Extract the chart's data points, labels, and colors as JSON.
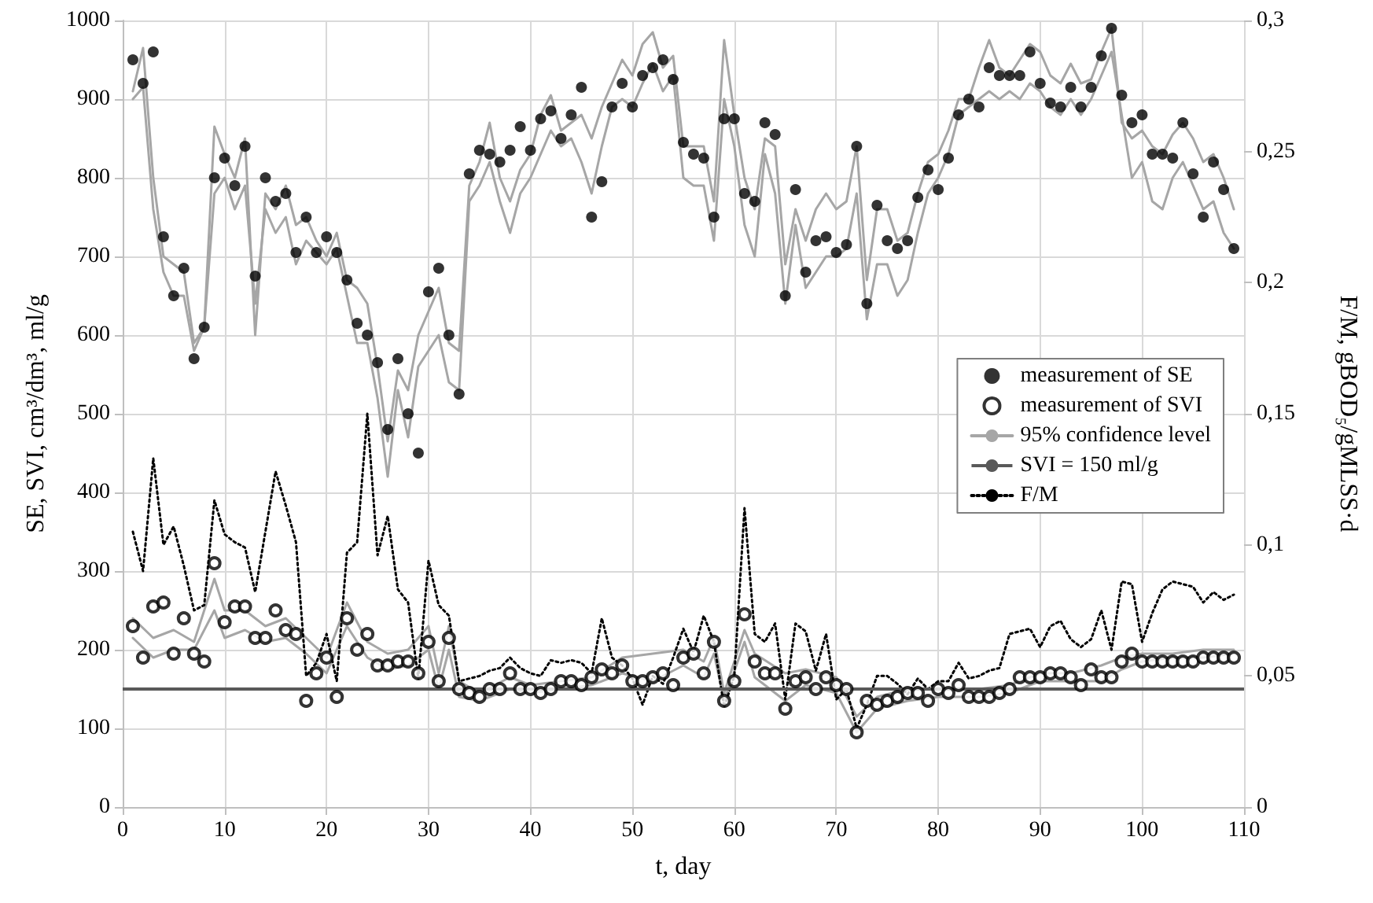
{
  "chart_data": {
    "type": "scatter",
    "xlabel": "t, day",
    "ylabel": "SE, SVI, cm³/dm³, ml/g",
    "y2label": "F/M, gBOD₅/gMLSS·d",
    "x": [
      1,
      2,
      3,
      4,
      5,
      6,
      7,
      8,
      9,
      10,
      11,
      12,
      13,
      14,
      15,
      16,
      17,
      18,
      19,
      20,
      21,
      22,
      23,
      24,
      25,
      26,
      27,
      28,
      29,
      30,
      31,
      32,
      33,
      34,
      35,
      36,
      37,
      38,
      39,
      40,
      41,
      42,
      43,
      44,
      45,
      46,
      47,
      48,
      49,
      50,
      51,
      52,
      53,
      54,
      55,
      56,
      57,
      58,
      59,
      60,
      61,
      62,
      63,
      64,
      65,
      66,
      67,
      68,
      69,
      70,
      71,
      72,
      73,
      74,
      75,
      76,
      77,
      78,
      79,
      80,
      81,
      82,
      83,
      84,
      85,
      86,
      87,
      88,
      89,
      90,
      91,
      92,
      93,
      94,
      95,
      96,
      97,
      98,
      99,
      100,
      101,
      102,
      103,
      104,
      105,
      106,
      107,
      108,
      109
    ],
    "xlim": [
      0,
      110
    ],
    "xticks": [
      0,
      10,
      20,
      30,
      40,
      50,
      60,
      70,
      80,
      90,
      100,
      110
    ],
    "ylim": [
      0,
      1000
    ],
    "yticks": [
      0,
      100,
      200,
      300,
      400,
      500,
      600,
      700,
      800,
      900,
      1000
    ],
    "y2lim": [
      0,
      0.3
    ],
    "y2ticks": [
      0,
      {
        "value": 0.05,
        "label": "0,05"
      },
      {
        "value": 0.1,
        "label": "0,1"
      },
      {
        "value": 0.15,
        "label": "0,15"
      },
      {
        "value": 0.2,
        "label": "0,2"
      },
      {
        "value": 0.25,
        "label": "0,25"
      },
      {
        "value": 0.3,
        "label": "0,3"
      }
    ],
    "grid": true,
    "legend": "right",
    "series": [
      {
        "name": "measurement of SE",
        "marker": "circle",
        "color": "#000000",
        "values": [
          950,
          920,
          960,
          725,
          650,
          685,
          570,
          610,
          800,
          825,
          790,
          840,
          675,
          800,
          770,
          780,
          705,
          750,
          705,
          725,
          705,
          670,
          615,
          600,
          565,
          480,
          570,
          500,
          450,
          655,
          685,
          600,
          525,
          805,
          835,
          830,
          820,
          835,
          865,
          835,
          875,
          885,
          850,
          880,
          915,
          750,
          795,
          890,
          920,
          890,
          930,
          940,
          950,
          925,
          845,
          830,
          825,
          750,
          875,
          875,
          780,
          770,
          870,
          855,
          650,
          785,
          680,
          720,
          725,
          705,
          715,
          840,
          640,
          765,
          720,
          710,
          720,
          775,
          810,
          785,
          825,
          880,
          900,
          890,
          940,
          930,
          930,
          930,
          960,
          920,
          895,
          890,
          915,
          890,
          915,
          955,
          990,
          905,
          870,
          880,
          830,
          830,
          825,
          870,
          805,
          750,
          820,
          785,
          710
        ]
      },
      {
        "name": "measurement of SVI",
        "marker": "open circle",
        "color": "#000000",
        "values": [
          230,
          190,
          255,
          260,
          195,
          240,
          195,
          185,
          310,
          235,
          255,
          255,
          215,
          215,
          250,
          225,
          220,
          135,
          170,
          190,
          140,
          240,
          200,
          220,
          180,
          180,
          185,
          185,
          170,
          210,
          160,
          215,
          150,
          145,
          140,
          150,
          150,
          170,
          150,
          150,
          145,
          150,
          160,
          160,
          155,
          165,
          175,
          170,
          180,
          160,
          160,
          165,
          170,
          155,
          190,
          195,
          170,
          210,
          135,
          160,
          245,
          185,
          170,
          170,
          125,
          160,
          165,
          150,
          165,
          155,
          150,
          95,
          135,
          130,
          135,
          140,
          145,
          145,
          135,
          150,
          145,
          155,
          140,
          140,
          140,
          145,
          150,
          165,
          165,
          165,
          170,
          170,
          165,
          155,
          175,
          165,
          165,
          185,
          195,
          185,
          185,
          185,
          185,
          185,
          185,
          190,
          190,
          190,
          190
        ]
      },
      {
        "name": "95% confidence level",
        "type": "line",
        "marker": "none",
        "line_style": "solid",
        "color": "#a6a6a6",
        "x": [
          1,
          2,
          3,
          4,
          5,
          6,
          7,
          8,
          9,
          10,
          11,
          12,
          13,
          14,
          15,
          16,
          17,
          18,
          19,
          20,
          21,
          22,
          23,
          24,
          25,
          26,
          27,
          28,
          29,
          30,
          31,
          32,
          33,
          34,
          35,
          36,
          37,
          38,
          39,
          40,
          41,
          42,
          43,
          44,
          45,
          46,
          47,
          48,
          49,
          50,
          51,
          52,
          53,
          54,
          55,
          56,
          57,
          58,
          59,
          60,
          61,
          62,
          63,
          64,
          65,
          66,
          67,
          68,
          69,
          70,
          71,
          72,
          73,
          74,
          75,
          76,
          77,
          78,
          79,
          80,
          81,
          82,
          83,
          84,
          85,
          86,
          87,
          88,
          89,
          90,
          91,
          92,
          93,
          94,
          95,
          96,
          97,
          98,
          99,
          100,
          101,
          102,
          103,
          104,
          105,
          106,
          107,
          108,
          109
        ],
        "values": [
          910,
          965,
          800,
          700,
          690,
          680,
          590,
          610,
          865,
          830,
          800,
          850,
          600,
          780,
          760,
          790,
          740,
          750,
          720,
          700,
          730,
          670,
          660,
          640,
          560,
          465,
          555,
          530,
          600,
          630,
          660,
          590,
          580,
          790,
          820,
          870,
          800,
          770,
          810,
          830,
          880,
          905,
          860,
          870,
          880,
          850,
          890,
          920,
          950,
          930,
          970,
          985,
          940,
          955,
          840,
          840,
          840,
          770,
          975,
          880,
          800,
          760,
          850,
          840,
          690,
          760,
          720,
          760,
          780,
          760,
          770,
          840,
          670,
          760,
          760,
          720,
          730,
          780,
          820,
          830,
          860,
          900,
          900,
          940,
          975,
          940,
          930,
          950,
          970,
          960,
          930,
          920,
          945,
          920,
          925,
          960,
          990,
          870,
          850,
          860,
          840,
          830,
          855,
          870,
          850,
          820,
          830,
          800,
          760
        ]
      },
      {
        "type": "line",
        "marker": "none",
        "line_style": "solid",
        "color": "#a6a6a6",
        "x": [
          1,
          2,
          3,
          4,
          5,
          6,
          7,
          8,
          9,
          10,
          11,
          12,
          13,
          14,
          15,
          16,
          17,
          18,
          19,
          20,
          21,
          22,
          23,
          24,
          25,
          26,
          27,
          28,
          29,
          30,
          31,
          32,
          33,
          34,
          35,
          36,
          37,
          38,
          39,
          40,
          41,
          42,
          43,
          44,
          45,
          46,
          47,
          48,
          49,
          50,
          51,
          52,
          53,
          54,
          55,
          56,
          57,
          58,
          59,
          60,
          61,
          62,
          63,
          64,
          65,
          66,
          67,
          68,
          69,
          70,
          71,
          72,
          73,
          74,
          75,
          76,
          77,
          78,
          79,
          80,
          81,
          82,
          83,
          84,
          85,
          86,
          87,
          88,
          89,
          90,
          91,
          92,
          93,
          94,
          95,
          96,
          97,
          98,
          99,
          100,
          101,
          102,
          103,
          104,
          105,
          106,
          107,
          108,
          109
        ],
        "values": [
          900,
          915,
          760,
          680,
          650,
          650,
          580,
          610,
          780,
          800,
          760,
          790,
          640,
          760,
          730,
          750,
          690,
          720,
          705,
          690,
          710,
          650,
          590,
          590,
          520,
          420,
          530,
          470,
          560,
          580,
          600,
          540,
          530,
          770,
          790,
          820,
          770,
          730,
          780,
          800,
          830,
          860,
          840,
          850,
          820,
          780,
          840,
          890,
          900,
          890,
          920,
          945,
          910,
          930,
          800,
          790,
          790,
          720,
          900,
          840,
          740,
          700,
          830,
          780,
          640,
          740,
          660,
          680,
          700,
          700,
          710,
          780,
          620,
          690,
          690,
          650,
          670,
          730,
          780,
          800,
          830,
          880,
          890,
          900,
          910,
          900,
          910,
          900,
          920,
          910,
          890,
          880,
          900,
          880,
          900,
          930,
          960,
          880,
          800,
          820,
          770,
          760,
          800,
          820,
          790,
          760,
          770,
          730,
          710
        ]
      },
      {
        "type": "line",
        "marker": "none",
        "line_style": "solid",
        "color": "#a6a6a6",
        "x": [
          1,
          3,
          5,
          7,
          9,
          10,
          12,
          14,
          16,
          18,
          20,
          22,
          24,
          26,
          28,
          30,
          31,
          32,
          33,
          35,
          38,
          40,
          43,
          46,
          49,
          52,
          55,
          57,
          58,
          59,
          61,
          62,
          65,
          67,
          70,
          72,
          74,
          77,
          80,
          84,
          87,
          90,
          93,
          96,
          98,
          100,
          103,
          106,
          109
        ],
        "values": [
          240,
          215,
          225,
          210,
          290,
          250,
          250,
          230,
          240,
          215,
          190,
          260,
          210,
          195,
          200,
          230,
          170,
          230,
          160,
          145,
          165,
          155,
          160,
          165,
          190,
          195,
          200,
          185,
          215,
          145,
          225,
          195,
          170,
          175,
          165,
          115,
          140,
          150,
          150,
          150,
          155,
          170,
          170,
          180,
          190,
          195,
          195,
          200,
          200
        ]
      },
      {
        "type": "line",
        "marker": "none",
        "line_style": "solid",
        "color": "#a6a6a6",
        "x": [
          1,
          3,
          5,
          7,
          9,
          10,
          12,
          14,
          16,
          18,
          20,
          22,
          24,
          26,
          28,
          30,
          31,
          32,
          33,
          35,
          38,
          40,
          43,
          46,
          49,
          52,
          55,
          57,
          58,
          59,
          61,
          62,
          65,
          67,
          70,
          72,
          74,
          77,
          80,
          84,
          87,
          90,
          93,
          96,
          98,
          100,
          103,
          106,
          109
        ],
        "values": [
          215,
          190,
          200,
          200,
          250,
          215,
          225,
          210,
          215,
          195,
          170,
          230,
          190,
          175,
          180,
          200,
          150,
          200,
          140,
          135,
          150,
          145,
          150,
          155,
          170,
          160,
          180,
          165,
          195,
          135,
          210,
          165,
          135,
          155,
          145,
          95,
          125,
          135,
          140,
          140,
          145,
          160,
          160,
          160,
          175,
          185,
          190,
          190,
          195
        ]
      },
      {
        "name": "F/M",
        "type": "line",
        "axis": "y2",
        "marker": "none",
        "line_style": "dotted",
        "color": "#000000",
        "values": [
          0.105,
          0.09,
          0.133,
          0.1,
          0.107,
          0.092,
          0.075,
          0.077,
          0.117,
          0.104,
          0.101,
          0.099,
          0.082,
          0.105,
          0.128,
          0.115,
          0.101,
          0.05,
          0.055,
          0.066,
          0.048,
          0.097,
          0.101,
          0.15,
          0.096,
          0.111,
          0.083,
          0.078,
          0.049,
          0.094,
          0.077,
          0.073,
          0.048,
          0.049,
          0.05,
          0.052,
          0.053,
          0.057,
          0.053,
          0.051,
          0.05,
          0.056,
          0.055,
          0.056,
          0.055,
          0.051,
          0.072,
          0.057,
          0.054,
          0.049,
          0.039,
          0.05,
          0.047,
          0.057,
          0.068,
          0.059,
          0.073,
          0.063,
          0.038,
          0.05,
          0.114,
          0.066,
          0.063,
          0.07,
          0.041,
          0.07,
          0.067,
          0.052,
          0.066,
          0.041,
          0.045,
          0.03,
          0.039,
          0.05,
          0.05,
          0.047,
          0.043,
          0.049,
          0.045,
          0.048,
          0.048,
          0.055,
          0.049,
          0.05,
          0.052,
          0.053,
          0.066,
          0.067,
          0.068,
          0.061,
          0.069,
          0.071,
          0.064,
          0.061,
          0.064,
          0.075,
          0.06,
          0.086,
          0.085,
          0.063,
          0.074,
          0.083,
          0.086,
          0.085,
          0.084,
          0.078,
          0.082,
          0.079,
          0.081
        ]
      }
    ],
    "ref_lines": [
      {
        "axis": "y",
        "value": 150,
        "label": "SVI = 150 ml/g",
        "color": "#595959",
        "line_style": "solid"
      }
    ]
  }
}
